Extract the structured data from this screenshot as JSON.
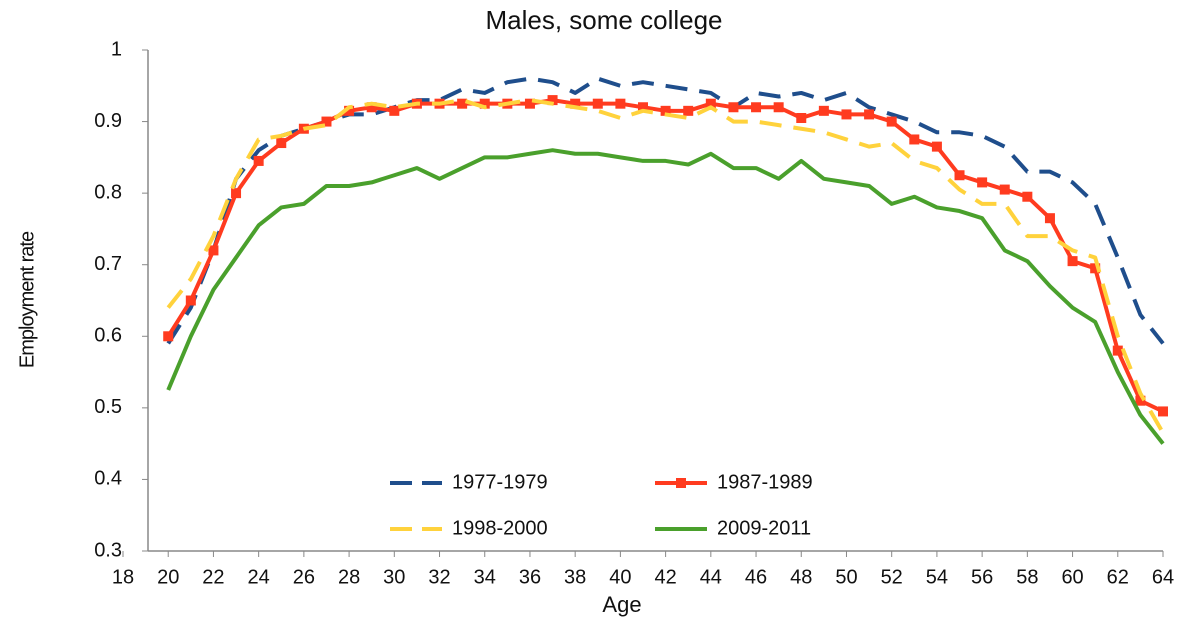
{
  "chart_data": {
    "type": "line",
    "title": "Males, some college",
    "x_label": "Age",
    "y_label": "Employment rate",
    "x": [
      20,
      21,
      22,
      23,
      24,
      25,
      26,
      27,
      28,
      29,
      30,
      31,
      32,
      33,
      34,
      35,
      36,
      37,
      38,
      39,
      40,
      41,
      42,
      43,
      44,
      45,
      46,
      47,
      48,
      49,
      50,
      51,
      52,
      53,
      54,
      55,
      56,
      57,
      58,
      59,
      60,
      61,
      62,
      63,
      64
    ],
    "xlim": [
      18,
      64
    ],
    "xticks": [
      18,
      20,
      22,
      24,
      26,
      28,
      30,
      32,
      34,
      36,
      38,
      40,
      42,
      44,
      46,
      48,
      50,
      52,
      54,
      56,
      58,
      60,
      62,
      64
    ],
    "ylim": [
      0.3,
      1
    ],
    "yticks": [
      0.3,
      0.4,
      0.5,
      0.6,
      0.7,
      0.8,
      0.9,
      1
    ],
    "grid": false,
    "series": [
      {
        "name": "1977-1979",
        "color": "#1f4e8c",
        "dashed": true,
        "marker": false,
        "values": [
          0.59,
          0.64,
          0.72,
          0.82,
          0.86,
          0.88,
          0.89,
          0.9,
          0.91,
          0.91,
          0.92,
          0.93,
          0.93,
          0.945,
          0.94,
          0.955,
          0.96,
          0.955,
          0.94,
          0.96,
          0.95,
          0.955,
          0.95,
          0.945,
          0.94,
          0.92,
          0.94,
          0.935,
          0.94,
          0.93,
          0.94,
          0.92,
          0.91,
          0.9,
          0.885,
          0.885,
          0.88,
          0.865,
          0.83,
          0.83,
          0.815,
          0.785,
          0.71,
          0.63,
          0.59
        ]
      },
      {
        "name": "1987-1989",
        "color": "#ff3b1f",
        "dashed": false,
        "marker": true,
        "values": [
          0.6,
          0.65,
          0.72,
          0.8,
          0.845,
          0.87,
          0.89,
          0.9,
          0.915,
          0.92,
          0.915,
          0.925,
          0.925,
          0.925,
          0.925,
          0.925,
          0.925,
          0.93,
          0.925,
          0.925,
          0.925,
          0.92,
          0.915,
          0.915,
          0.925,
          0.92,
          0.92,
          0.92,
          0.905,
          0.915,
          0.91,
          0.91,
          0.9,
          0.875,
          0.865,
          0.825,
          0.815,
          0.805,
          0.795,
          0.765,
          0.705,
          0.695,
          0.58,
          0.51,
          0.495
        ]
      },
      {
        "name": "1998-2000",
        "color": "#ffd23c",
        "dashed": true,
        "marker": false,
        "values": [
          0.64,
          0.68,
          0.74,
          0.82,
          0.875,
          0.88,
          0.89,
          0.895,
          0.92,
          0.925,
          0.92,
          0.925,
          0.925,
          0.93,
          0.92,
          0.925,
          0.93,
          0.925,
          0.92,
          0.915,
          0.905,
          0.915,
          0.91,
          0.905,
          0.92,
          0.9,
          0.9,
          0.895,
          0.89,
          0.885,
          0.875,
          0.865,
          0.87,
          0.845,
          0.835,
          0.805,
          0.785,
          0.785,
          0.74,
          0.74,
          0.72,
          0.71,
          0.6,
          0.52,
          0.465
        ]
      },
      {
        "name": "2009-2011",
        "color": "#4aa02c",
        "dashed": false,
        "marker": false,
        "values": [
          0.525,
          0.6,
          0.665,
          0.71,
          0.755,
          0.78,
          0.785,
          0.81,
          0.81,
          0.815,
          0.825,
          0.835,
          0.82,
          0.835,
          0.85,
          0.85,
          0.855,
          0.86,
          0.855,
          0.855,
          0.85,
          0.845,
          0.845,
          0.84,
          0.855,
          0.835,
          0.835,
          0.82,
          0.845,
          0.82,
          0.815,
          0.81,
          0.785,
          0.795,
          0.78,
          0.775,
          0.765,
          0.72,
          0.705,
          0.67,
          0.64,
          0.62,
          0.55,
          0.49,
          0.45
        ]
      }
    ]
  }
}
